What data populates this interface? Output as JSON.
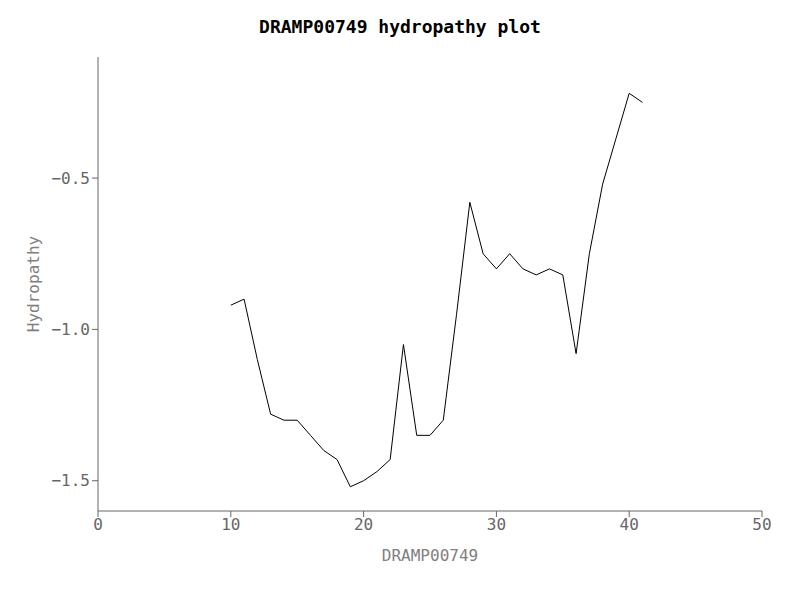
{
  "chart_data": {
    "type": "line",
    "title": "DRAMP00749 hydropathy plot",
    "xlabel": "DRAMP00749",
    "ylabel": "Hydropathy",
    "x": [
      10,
      11,
      12,
      13,
      14,
      15,
      16,
      17,
      18,
      19,
      20,
      21,
      22,
      23,
      24,
      25,
      26,
      27,
      28,
      29,
      30,
      31,
      32,
      33,
      34,
      35,
      36,
      37,
      38,
      39,
      40,
      41
    ],
    "values": [
      -0.92,
      -0.9,
      -1.1,
      -1.28,
      -1.3,
      -1.3,
      -1.35,
      -1.4,
      -1.43,
      -1.52,
      -1.5,
      -1.47,
      -1.43,
      -1.05,
      -1.35,
      -1.35,
      -1.3,
      -0.95,
      -0.58,
      -0.75,
      -0.8,
      -0.75,
      -0.8,
      -0.82,
      -0.8,
      -0.82,
      -1.08,
      -0.75,
      -0.52,
      -0.37,
      -0.22,
      -0.25
    ],
    "color": "black",
    "xlim": [
      0,
      50
    ],
    "ylim": [
      -1.6,
      -0.1
    ],
    "xticks": [
      0,
      10,
      20,
      30,
      40,
      50
    ],
    "yticks": [
      {
        "value": -1.5,
        "label": "−1.5"
      },
      {
        "value": -1.0,
        "label": "−1.0"
      },
      {
        "value": -0.5,
        "label": "−0.5"
      }
    ],
    "grid": false
  }
}
